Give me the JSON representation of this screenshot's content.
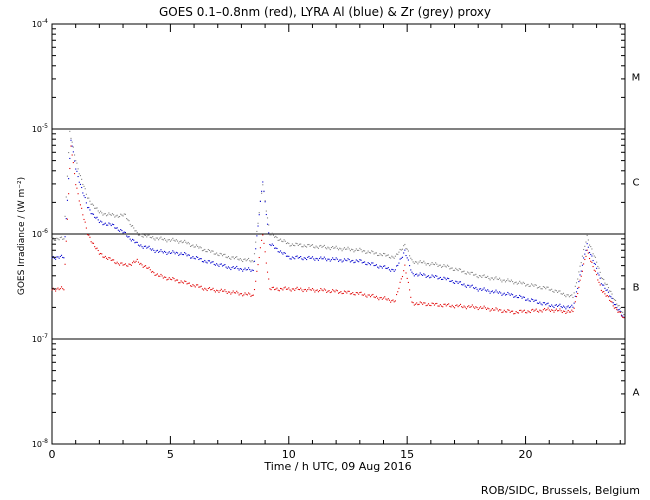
{
  "chart_data": {
    "type": "scatter",
    "title": "GOES 0.1–0.8nm (red), LYRA Al (blue) & Zr (grey) proxy",
    "xlabel": "Time / h UTC, 09 Aug 2016",
    "ylabel": "GOES Irradiance / (W m⁻²)",
    "xlim": [
      0,
      24.2
    ],
    "ylim_log10": [
      -8,
      -4
    ],
    "log_y": true,
    "x_ticks": [
      0,
      5,
      10,
      15,
      20
    ],
    "y_tick_labels": [
      {
        "base": "10",
        "exp": "-8"
      },
      {
        "base": "10",
        "exp": "-7"
      },
      {
        "base": "10",
        "exp": "-6"
      },
      {
        "base": "10",
        "exp": "-5"
      },
      {
        "base": "10",
        "exp": "-4"
      }
    ],
    "class_levels": [
      -7,
      -6,
      -5
    ],
    "flare_classes": [
      {
        "label": "A",
        "y_log10": -7.5
      },
      {
        "label": "B",
        "y_log10": -6.5
      },
      {
        "label": "C",
        "y_log10": -5.5
      },
      {
        "label": "M",
        "y_log10": -4.5
      }
    ],
    "series": [
      {
        "color": "#808080",
        "points": [
          [
            0.0,
            9e-07
          ],
          [
            0.5,
            9e-07
          ],
          [
            0.75,
            9.5e-06
          ],
          [
            1.0,
            5e-06
          ],
          [
            1.5,
            2.2e-06
          ],
          [
            2.0,
            1.6e-06
          ],
          [
            2.6,
            1.5e-06
          ],
          [
            3.1,
            1.5e-06
          ],
          [
            3.6,
            1e-06
          ],
          [
            4.5,
            9e-07
          ],
          [
            5.5,
            8.5e-07
          ],
          [
            6.5,
            7e-07
          ],
          [
            7.5,
            6e-07
          ],
          [
            8.5,
            5.5e-07
          ],
          [
            8.9,
            3e-06
          ],
          [
            9.2,
            1e-06
          ],
          [
            10.0,
            8e-07
          ],
          [
            11.5,
            7.5e-07
          ],
          [
            13.0,
            7e-07
          ],
          [
            14.5,
            6e-07
          ],
          [
            14.9,
            8e-07
          ],
          [
            15.2,
            5.5e-07
          ],
          [
            16.5,
            5e-07
          ],
          [
            18.0,
            4e-07
          ],
          [
            19.5,
            3.5e-07
          ],
          [
            21.0,
            3e-07
          ],
          [
            22.0,
            2.5e-07
          ],
          [
            22.6,
            9.5e-07
          ],
          [
            23.2,
            4e-07
          ],
          [
            24.2,
            1.6e-07
          ]
        ]
      },
      {
        "color": "#0000cc",
        "points": [
          [
            0.0,
            6e-07
          ],
          [
            0.5,
            6e-07
          ],
          [
            0.8,
            8e-06
          ],
          [
            1.0,
            4.2e-06
          ],
          [
            1.5,
            1.8e-06
          ],
          [
            2.0,
            1.3e-06
          ],
          [
            2.6,
            1.2e-06
          ],
          [
            3.1,
            1e-06
          ],
          [
            3.6,
            8e-07
          ],
          [
            4.5,
            6.8e-07
          ],
          [
            5.5,
            6.5e-07
          ],
          [
            6.5,
            5.5e-07
          ],
          [
            7.5,
            4.8e-07
          ],
          [
            8.5,
            4.5e-07
          ],
          [
            8.9,
            3.2e-06
          ],
          [
            9.2,
            8e-07
          ],
          [
            10.0,
            6e-07
          ],
          [
            11.5,
            5.8e-07
          ],
          [
            13.0,
            5.5e-07
          ],
          [
            14.5,
            4.5e-07
          ],
          [
            14.9,
            7e-07
          ],
          [
            15.2,
            4.2e-07
          ],
          [
            16.5,
            3.8e-07
          ],
          [
            18.0,
            3e-07
          ],
          [
            19.5,
            2.6e-07
          ],
          [
            21.0,
            2.1e-07
          ],
          [
            22.0,
            2e-07
          ],
          [
            22.6,
            8e-07
          ],
          [
            23.2,
            3.5e-07
          ],
          [
            24.2,
            1.5e-07
          ]
        ]
      },
      {
        "color": "#e00000",
        "points": [
          [
            0.0,
            3e-07
          ],
          [
            0.5,
            3e-07
          ],
          [
            0.8,
            7e-06
          ],
          [
            1.0,
            3e-06
          ],
          [
            1.5,
            1e-06
          ],
          [
            2.0,
            6.5e-07
          ],
          [
            2.6,
            5.5e-07
          ],
          [
            3.1,
            5e-07
          ],
          [
            3.6,
            5.5e-07
          ],
          [
            4.5,
            4e-07
          ],
          [
            5.5,
            3.5e-07
          ],
          [
            6.5,
            3e-07
          ],
          [
            7.5,
            2.8e-07
          ],
          [
            8.5,
            2.6e-07
          ],
          [
            8.9,
            1e-06
          ],
          [
            9.2,
            3e-07
          ],
          [
            10.0,
            3e-07
          ],
          [
            11.5,
            2.9e-07
          ],
          [
            13.0,
            2.7e-07
          ],
          [
            14.5,
            2.3e-07
          ],
          [
            14.9,
            5e-07
          ],
          [
            15.2,
            2.2e-07
          ],
          [
            16.5,
            2.1e-07
          ],
          [
            18.0,
            2e-07
          ],
          [
            19.5,
            1.8e-07
          ],
          [
            21.0,
            1.9e-07
          ],
          [
            22.0,
            1.8e-07
          ],
          [
            22.6,
            7e-07
          ],
          [
            23.2,
            3e-07
          ],
          [
            24.2,
            1.5e-07
          ]
        ]
      }
    ]
  },
  "credit": "ROB/SIDC, Brussels, Belgium"
}
